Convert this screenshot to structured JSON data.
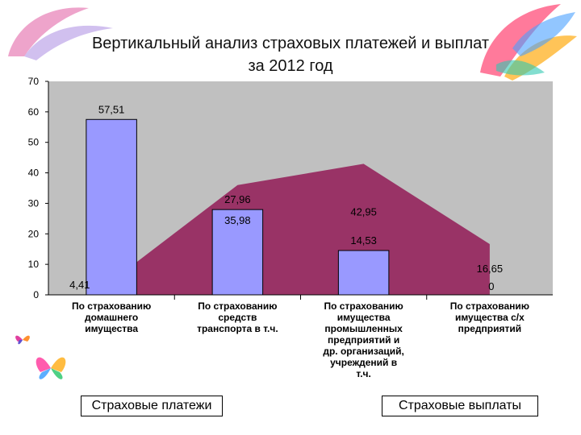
{
  "title_line1": "Вертикальный анализ страховых платежей и выплат",
  "title_line2": "за 2012 год",
  "legend": {
    "left": "Страховые платежи",
    "right": "Страховые выплаты"
  },
  "colors": {
    "bars": "#9999ff",
    "area": "#993366",
    "plot_bg": "#c0c0c0"
  },
  "chart_data": {
    "type": "bar",
    "title": "Вертикальный анализ страховых платежей и выплат за 2012 год",
    "categories": [
      "По страхованию домашнего имущества",
      "По страхованию средств транспорта в т.ч.",
      "По страхованию имущества промышленных предприятий и др. организаций, учреждений в т.ч.",
      "По страхованию имущества с/х предприятий"
    ],
    "category_lines": [
      [
        "По страхованию",
        "домашнего",
        "имущества"
      ],
      [
        "По страхованию",
        "средств",
        "транспорта в т.ч."
      ],
      [
        "По страхованию",
        "имущества",
        "промышленных",
        "предприятий и",
        "др. организаций,",
        "учреждений в",
        "т.ч."
      ],
      [
        "По страхованию",
        "имущества с/х",
        "предприятий"
      ]
    ],
    "ylim": [
      0,
      70
    ],
    "yticks": [
      0,
      10,
      20,
      30,
      40,
      50,
      60,
      70
    ],
    "series": [
      {
        "name": "Страховые платежи",
        "type": "bar",
        "values": [
          57.51,
          27.96,
          14.53,
          0
        ],
        "labels": [
          "57,51",
          "27,96",
          "14,53",
          "0"
        ]
      },
      {
        "name": "Страховые выплаты",
        "type": "area",
        "values": [
          4.41,
          35.98,
          42.95,
          16.65
        ],
        "labels": [
          "4,41",
          "35,98",
          "42,95",
          "16,65"
        ]
      }
    ]
  }
}
